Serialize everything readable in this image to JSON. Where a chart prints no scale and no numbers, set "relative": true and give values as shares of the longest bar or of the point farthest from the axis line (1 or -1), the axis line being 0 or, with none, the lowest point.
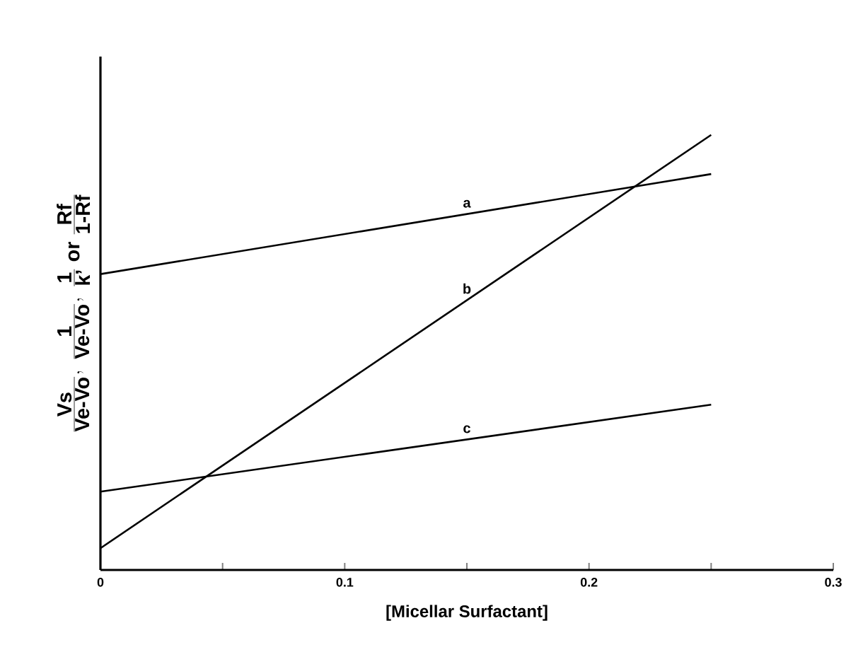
{
  "chart_data": {
    "type": "line",
    "relative": true,
    "xlabel": "[Micellar Surfactant]",
    "ylabel": "\\frac{\\mbox{Vs}}{\\mbox{Ve-Vo}},\\ \\frac{\\mbox{1}}{\\mbox{Ve-Vo}},\\ \\frac{\\mbox{1}}{\\mbox{k'}}\\ \\mbox{or}\\ \\frac{\\mbox{Rf}}{\\mbox{1-Rf}}",
    "xlim": [
      0,
      0.3
    ],
    "xticks": [
      0,
      {
        "value": 0.05,
        "label": null
      },
      0.1,
      {
        "value": 0.15,
        "label": null
      },
      0.2,
      {
        "value": 0.25,
        "label": null
      },
      0.3
    ],
    "tick_labels": "x",
    "legend": false,
    "x": [
      0,
      0.25
    ],
    "series": [
      {
        "name": "a",
        "color": "#000000",
        "values": [
          0.68,
          0.91
        ]
      },
      {
        "name": "b",
        "color": "#000000",
        "values": [
          0.05,
          1
        ]
      },
      {
        "name": "c",
        "color": "#000000",
        "values": [
          0.18,
          0.38
        ]
      }
    ]
  }
}
